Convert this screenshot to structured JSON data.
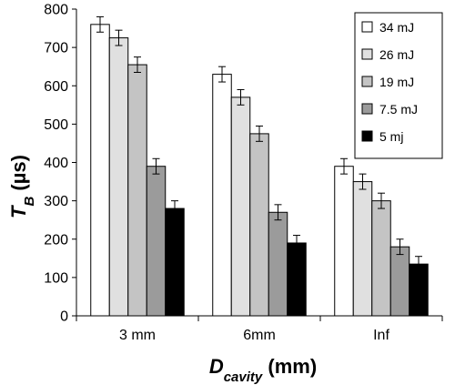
{
  "chart_data": {
    "type": "bar",
    "categories": [
      "3 mm",
      "6mm",
      "Inf"
    ],
    "series": [
      {
        "name": "34 mJ",
        "values": [
          760,
          630,
          390
        ],
        "errors": [
          20,
          20,
          20
        ],
        "color": "#ffffff"
      },
      {
        "name": "26 mJ",
        "values": [
          725,
          570,
          350
        ],
        "errors": [
          20,
          20,
          20
        ],
        "color": "#e0e0e0"
      },
      {
        "name": "19 mJ",
        "values": [
          655,
          475,
          300
        ],
        "errors": [
          20,
          20,
          20
        ],
        "color": "#c4c4c4"
      },
      {
        "name": "7.5 mJ",
        "values": [
          390,
          270,
          180
        ],
        "errors": [
          20,
          20,
          20
        ],
        "color": "#9b9b9b"
      },
      {
        "name": "5 mj",
        "values": [
          280,
          190,
          135
        ],
        "errors": [
          20,
          20,
          20
        ],
        "color": "#000000"
      }
    ],
    "ylim": [
      0,
      800
    ],
    "yticks": [
      0,
      100,
      200,
      300,
      400,
      500,
      600,
      700,
      800
    ],
    "ylabel": {
      "base": "T",
      "sub": "B",
      "unit": " (µs)"
    },
    "xlabel": {
      "base": "D",
      "sub": "cavity",
      "unit": " (mm)"
    },
    "grid": false,
    "legend_position": "top-right"
  }
}
